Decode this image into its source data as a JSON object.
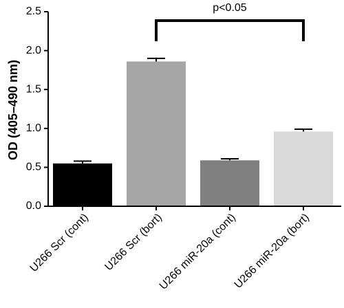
{
  "chart_data": {
    "type": "bar",
    "y_label": "OD (405–490 nm)",
    "categories": [
      "U266 Scr (cont)",
      "U266 Scr (bort)",
      "U266 miR-20a (cont)",
      "U266 miR-20a (bort)"
    ],
    "values": [
      0.55,
      1.86,
      0.59,
      0.96
    ],
    "errors": [
      0.03,
      0.04,
      0.02,
      0.03
    ],
    "colors": [
      "#000000",
      "#a6a6a6",
      "#808080",
      "#d9d9d9"
    ],
    "ylim": [
      0,
      2.5
    ],
    "yticks": [
      {
        "value": 0,
        "label": "0.0"
      },
      0.5,
      {
        "value": 1,
        "label": "1.0"
      },
      1.5,
      {
        "value": 2,
        "label": "2.0"
      },
      2.5
    ],
    "annotation": "p<0.05"
  }
}
